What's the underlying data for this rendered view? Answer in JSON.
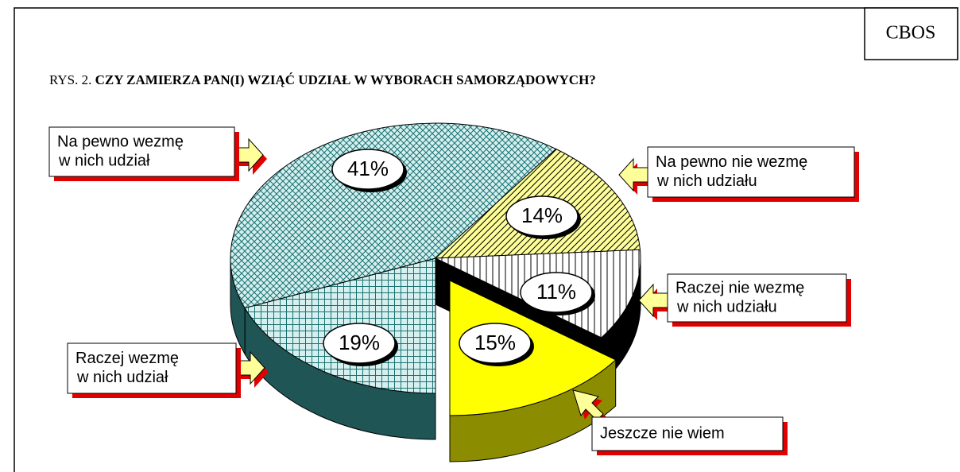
{
  "source": "CBOS",
  "chart_data": {
    "type": "pie",
    "figure_label": "RYS. 2.",
    "title": "CZY ZAMIERZA PAN(I) WZIĄĆ UDZIAŁ W WYBORACH SAMORZĄDOWYCH?",
    "categories": [
      [
        "Raczej wezmę",
        "w nich udział"
      ],
      [
        "Na pewno wezmę",
        "w nich udział"
      ],
      [
        "Na pewno nie wezmę",
        "w nich udziału"
      ],
      [
        "Raczej nie wezmę",
        "w nich udziału"
      ],
      [
        "Jeszcze nie wiem"
      ]
    ],
    "values": [
      19,
      41,
      14,
      11,
      15
    ],
    "value_labels": [
      "19%",
      "41%",
      "14%",
      "11%",
      "15%"
    ],
    "colors": [
      "#d6f0f0",
      "#d6f0f0",
      "#ffff99",
      "#ffffff",
      "#ffff00"
    ],
    "side_colors": [
      "#1f5555",
      "#1f5555",
      "#000000",
      "#000000",
      "#8c8c00"
    ]
  }
}
